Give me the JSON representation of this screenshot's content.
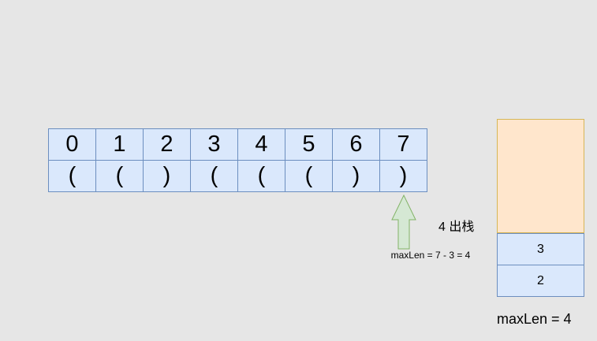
{
  "array": {
    "indices": [
      "0",
      "1",
      "2",
      "3",
      "4",
      "5",
      "6",
      "7"
    ],
    "chars": [
      "(",
      "(",
      ")",
      "(",
      "(",
      "(",
      ")",
      ")"
    ]
  },
  "pointer": {
    "formula": "maxLen = 7 - 3 = 4"
  },
  "stack": {
    "action": "4 出栈",
    "items": [
      "3",
      "2"
    ]
  },
  "result": {
    "text": "maxLen = 4"
  },
  "colors": {
    "cell_fill": "#dae8fc",
    "cell_border": "#6c8ebf",
    "stack_empty_fill": "#ffe6cc",
    "stack_empty_border": "#d6b656",
    "arrow_fill": "#d5e8d4",
    "arrow_border": "#82b366"
  }
}
